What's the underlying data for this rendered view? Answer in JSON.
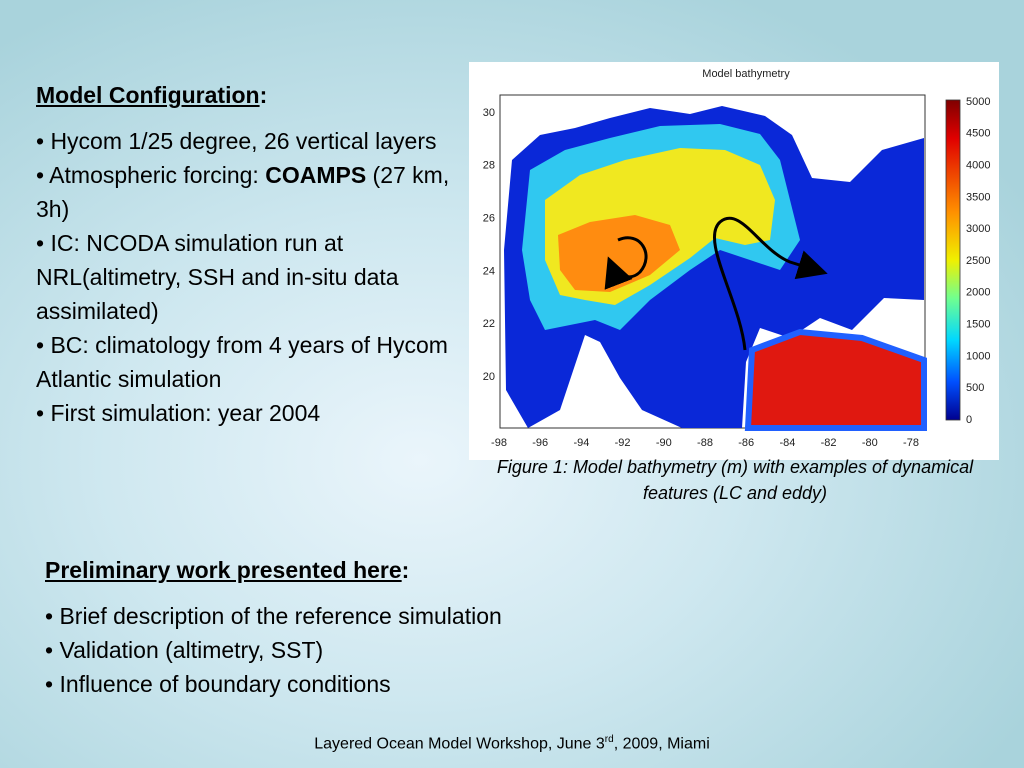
{
  "config": {
    "heading": "Model Configuration",
    "heading_suffix": ":",
    "bullets": [
      [
        "• Hycom 1/25 degree, 26 vertical layers"
      ],
      [
        "• Atmospheric forcing: ",
        "COAMPS",
        " (27 km, 3h)"
      ],
      [
        "• IC: NCODA simulation run at NRL(altimetry, SSH and in-situ data assimilated)"
      ],
      [
        "• BC: climatology from 4 years of Hycom Atlantic simulation"
      ],
      [
        "• First simulation: year 2004"
      ]
    ]
  },
  "figure": {
    "title": "Model bathymetry",
    "lat_ticks": [
      30,
      28,
      26,
      24,
      22,
      20
    ],
    "lon_ticks": [
      -98,
      -96,
      -94,
      -92,
      -90,
      -88,
      -86,
      -84,
      -82,
      -80,
      -78
    ],
    "colorbar_ticks": [
      5000,
      4500,
      4000,
      3500,
      3000,
      2500,
      2000,
      1500,
      1000,
      500,
      0
    ],
    "caption": "Figure 1: Model bathymetry (m) with examples of dynamical features (LC and eddy)"
  },
  "work": {
    "heading": "Preliminary work presented here",
    "heading_suffix": ":",
    "bullets": [
      "• Brief description of the reference simulation",
      "• Validation (altimetry, SST)",
      "• Influence of boundary conditions"
    ]
  },
  "footer": {
    "before": "Layered Ocean Model Workshop, June 3",
    "sup": "rd",
    "after": ", 2009, Miami"
  }
}
